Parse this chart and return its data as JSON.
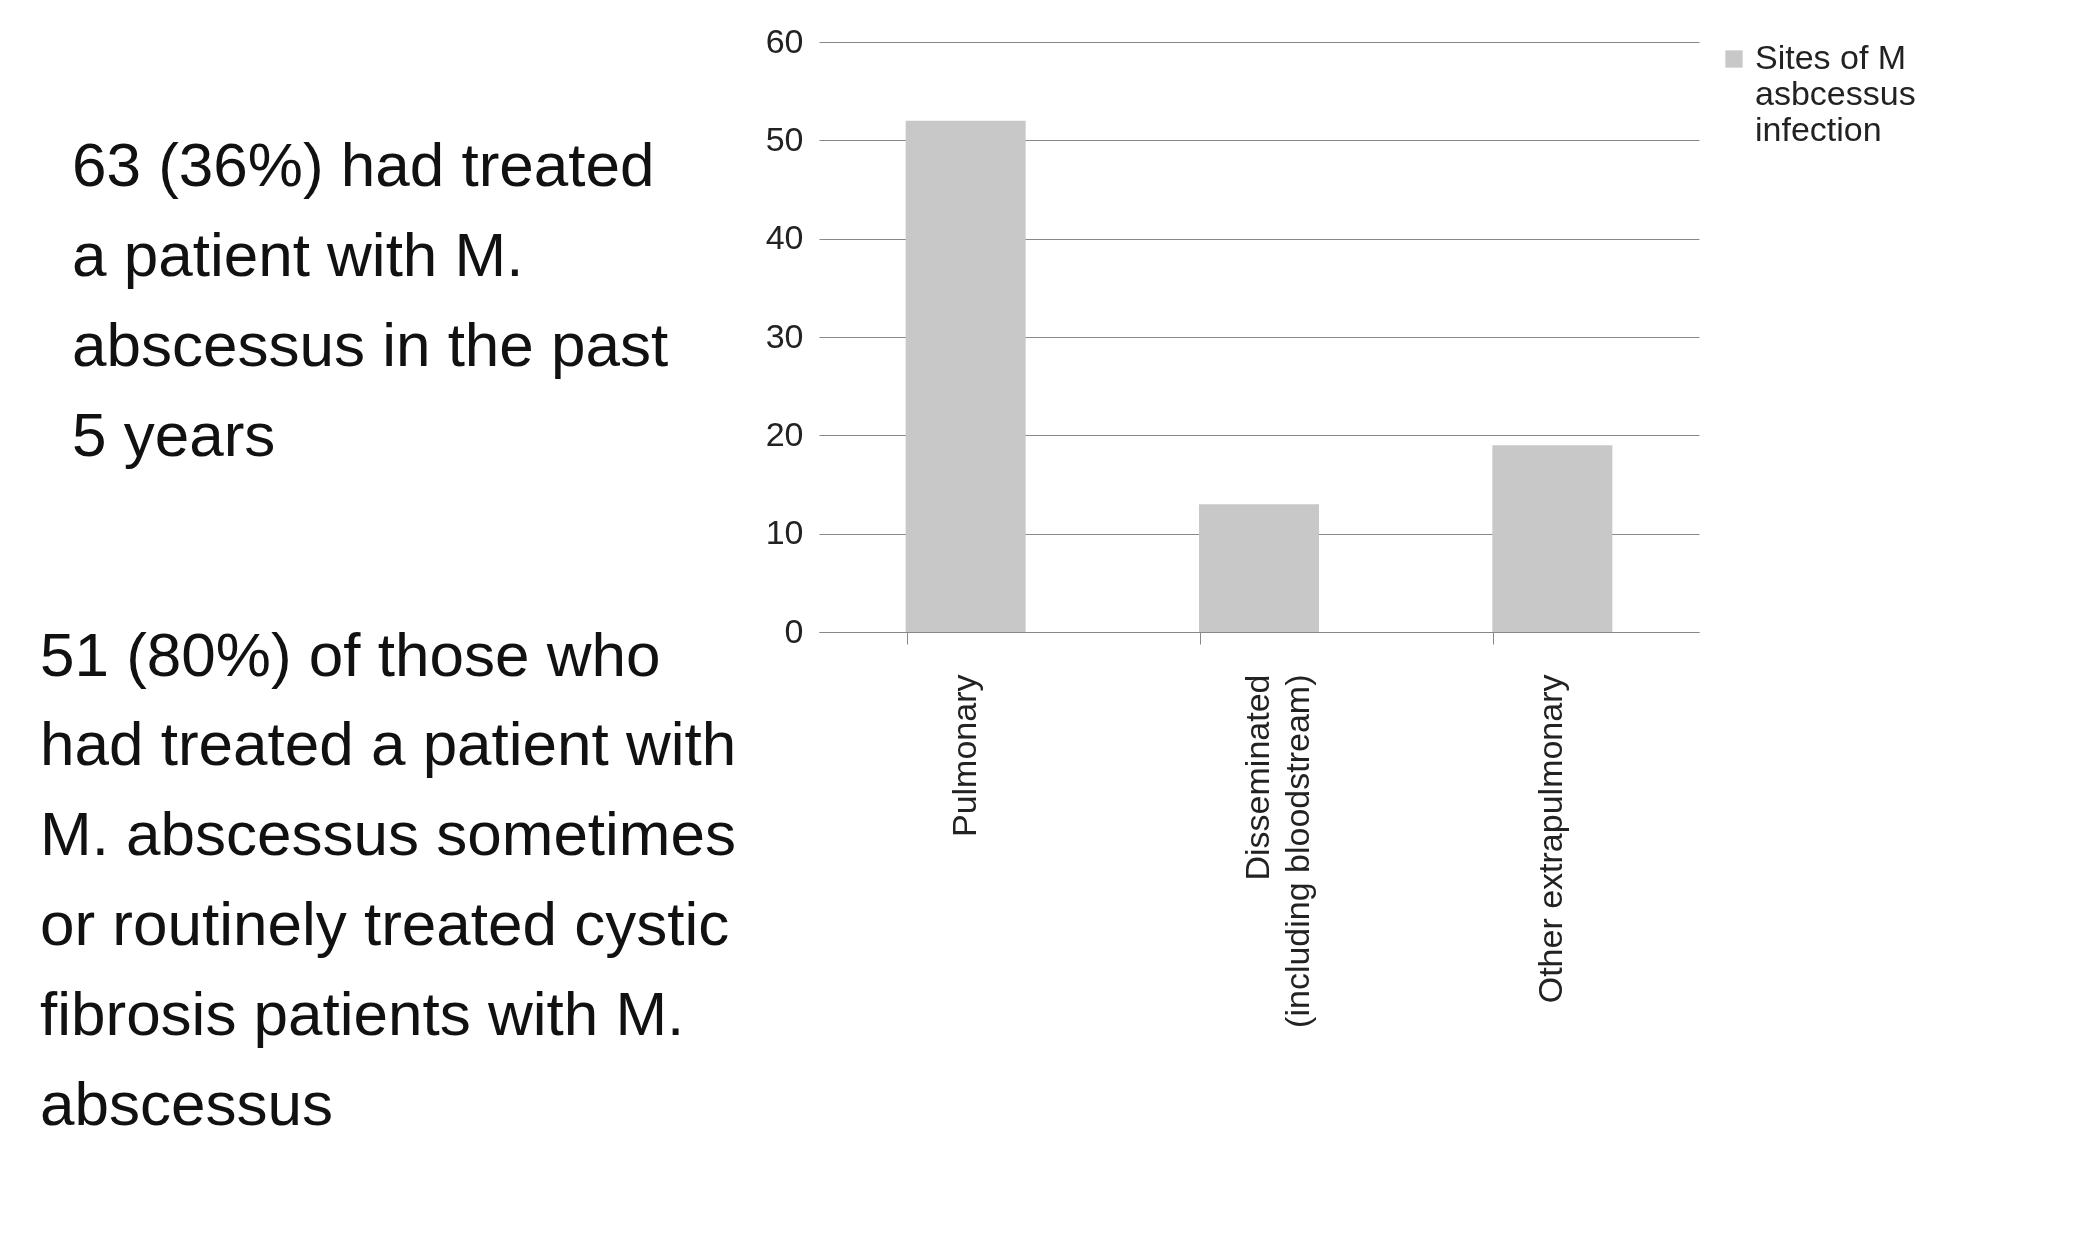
{
  "chart_data": {
    "type": "bar",
    "categories": [
      "Pulmonary",
      "Disseminated (including bloodstream)",
      "Other extrapulmonary"
    ],
    "series": [
      {
        "name": "Sites of M asbcessus infection",
        "color": "#c8c8c8",
        "values": [
          52,
          13,
          19
        ]
      }
    ],
    "ylim": [
      0,
      60
    ],
    "yticks": [
      0,
      10,
      20,
      30,
      40,
      50,
      60
    ],
    "grid": "y",
    "legend": "right",
    "annotations": [
      "63 (36%) had treated a patient with M. abscessus in the past 5 years",
      "51 (80%) of those who had treated a patient with M. abscessus sometimes or routinely treated cystic fibrosis patients with M. abscessus"
    ]
  }
}
